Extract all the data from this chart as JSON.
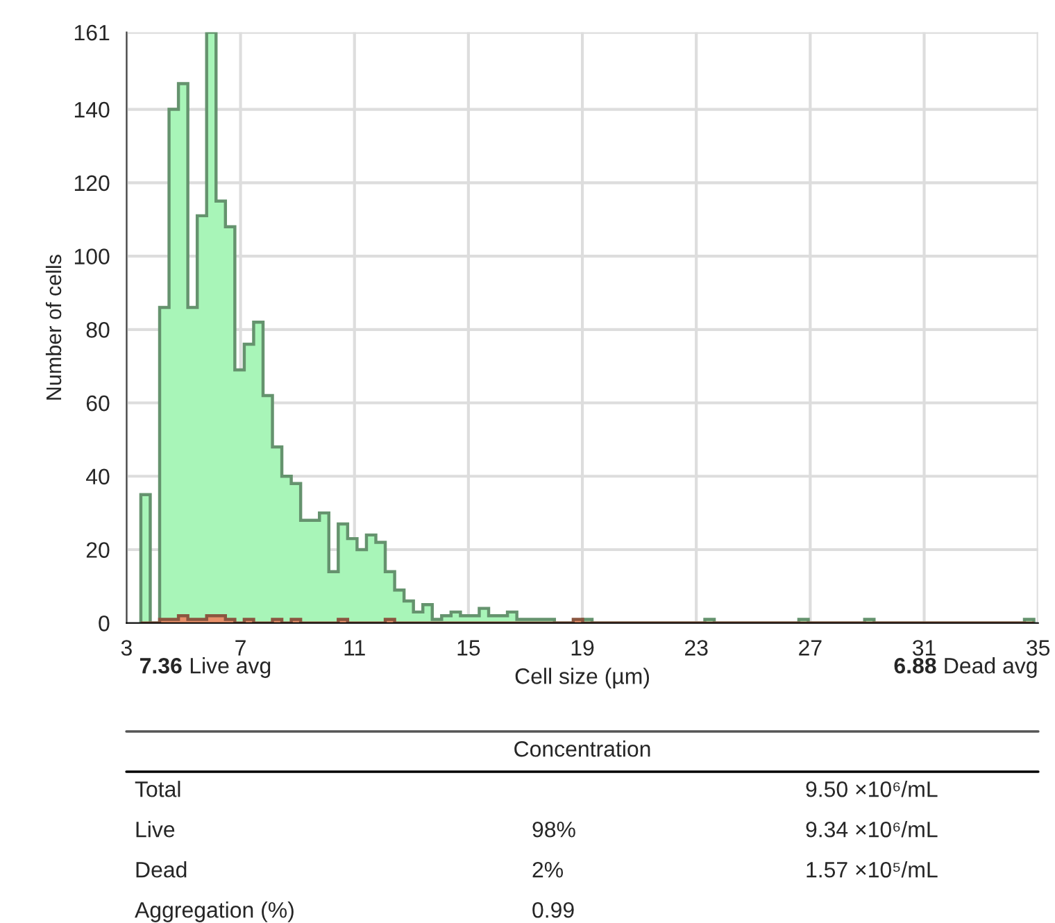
{
  "chart_data": {
    "type": "histogram",
    "xlabel": "Cell size (µm)",
    "ylabel": "Number of cells",
    "bins": [
      3.5,
      3.83,
      4.16,
      4.49,
      4.82,
      5.15,
      5.48,
      5.81,
      6.14,
      6.47,
      6.8,
      7.13,
      7.46,
      7.79,
      8.12,
      8.45,
      8.78,
      9.11,
      9.44,
      9.77,
      10.1,
      10.43,
      10.76,
      11.09,
      11.42,
      11.75,
      12.08,
      12.41,
      12.74,
      13.07,
      13.4,
      13.73,
      14.06,
      14.39,
      14.72,
      15.05,
      15.38,
      15.71,
      16.04,
      16.37,
      16.7,
      17.03,
      17.36,
      17.69,
      18.02,
      18.35,
      18.68,
      19.01,
      19.34,
      19.67,
      20,
      20.33,
      20.66,
      20.99,
      21.32,
      21.65,
      21.98,
      22.31,
      22.64,
      22.97,
      23.3,
      23.63,
      23.96,
      24.29,
      24.62,
      24.95,
      25.28,
      25.61,
      25.94,
      26.27,
      26.6,
      26.93,
      27.26,
      27.59,
      27.92,
      28.25,
      28.58,
      28.91,
      29.24,
      29.57,
      29.9,
      30.23,
      30.56,
      30.89,
      31.22,
      31.55,
      31.88,
      32.21,
      32.54,
      32.87,
      33.2,
      33.53,
      33.86,
      34.19,
      34.52,
      34.85
    ],
    "series": [
      {
        "color": "#a8f5b8",
        "values": [
          35,
          0,
          86,
          140,
          147,
          86,
          111,
          161,
          115,
          108,
          69,
          76,
          82,
          62,
          48,
          40,
          38,
          28,
          28,
          30,
          14,
          27,
          23,
          20,
          24,
          22,
          14,
          9,
          6,
          3,
          5,
          1,
          2,
          3,
          2,
          2,
          4,
          2,
          2,
          3,
          1,
          1,
          1,
          1,
          0,
          0,
          0,
          1,
          0,
          0,
          0,
          0,
          0,
          0,
          0,
          0,
          0,
          0,
          0,
          0,
          1,
          0,
          0,
          0,
          0,
          0,
          0,
          0,
          0,
          0,
          1,
          0,
          0,
          0,
          0,
          0,
          0,
          1,
          0,
          0,
          0,
          0,
          0,
          0,
          0,
          0,
          0,
          0,
          0,
          0,
          0,
          0,
          0,
          0,
          1
        ]
      },
      {
        "color": "#e8906a",
        "values": [
          0,
          0,
          1,
          1,
          2,
          1,
          1,
          2,
          2,
          1,
          0,
          1,
          0,
          0,
          1,
          0,
          1,
          0,
          0,
          0,
          0,
          1,
          0,
          0,
          0,
          0,
          1,
          0,
          0,
          0,
          0,
          0,
          0,
          0,
          0,
          0,
          0,
          0,
          0,
          0,
          0,
          0,
          0,
          0,
          0,
          0,
          1,
          0,
          0,
          0,
          0,
          0,
          0,
          0,
          0,
          0,
          0,
          0,
          0,
          0,
          0,
          0,
          0,
          0,
          0,
          0,
          0,
          0,
          0,
          0,
          0,
          0,
          0,
          0,
          0,
          0,
          0,
          0,
          0,
          0,
          0,
          0,
          0,
          0,
          0,
          0,
          0,
          0,
          0,
          0,
          0,
          0,
          0,
          0,
          0
        ]
      }
    ],
    "xlim": [
      3,
      35
    ],
    "xticks": [
      3,
      7,
      11,
      15,
      19,
      23,
      27,
      31,
      35
    ],
    "ylim": [
      0,
      161
    ],
    "yticks": [
      0,
      20,
      40,
      60,
      80,
      100,
      120,
      140,
      161
    ],
    "grid": true,
    "annotations": [
      "7.36 Live avg",
      "6.88 Dead avg",
      "Concentration",
      "Total",
      "9.50 ×10⁶/mL",
      "Live",
      "98%",
      "9.34 ×10⁶/mL",
      "Dead",
      "2%",
      "1.57 ×10⁵/mL",
      "Aggregation (%)",
      "0.99"
    ]
  }
}
